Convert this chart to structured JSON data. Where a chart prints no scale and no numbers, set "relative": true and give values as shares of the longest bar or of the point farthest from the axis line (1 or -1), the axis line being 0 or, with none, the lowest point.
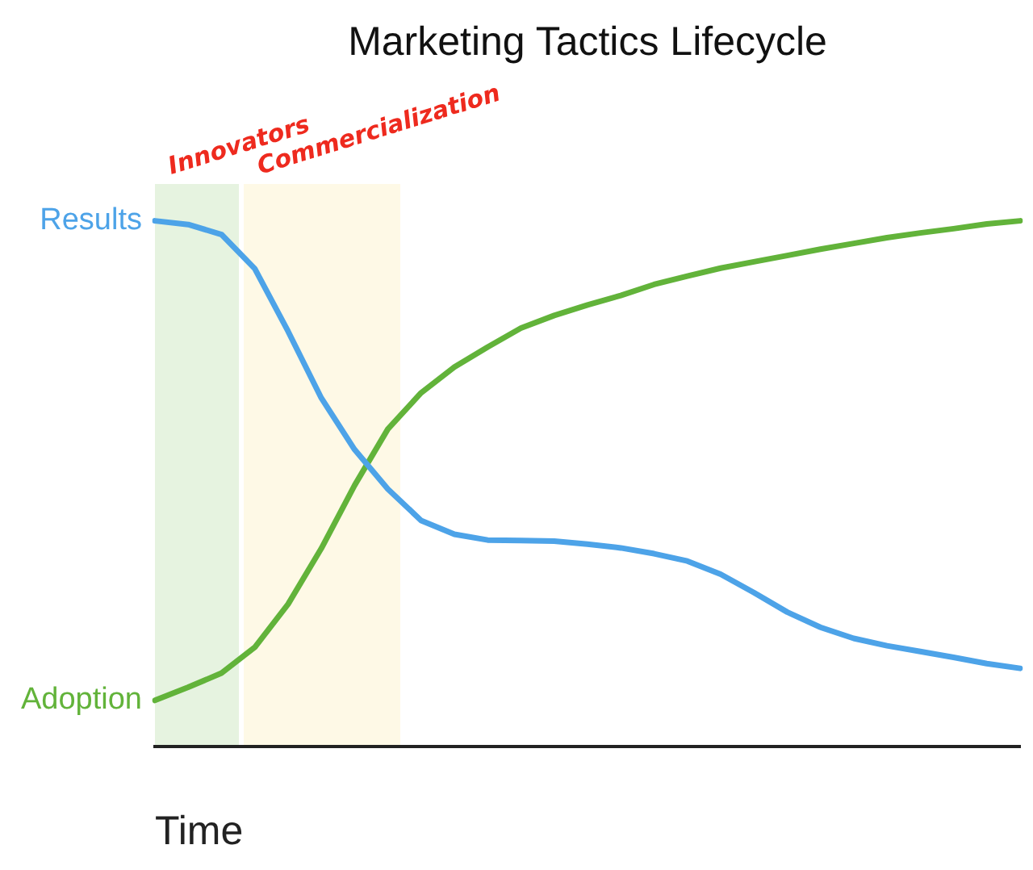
{
  "chart_data": {
    "type": "line",
    "title": "Marketing Tactics Lifecycle",
    "xlabel": "Time",
    "relative": true,
    "legend": false,
    "marker": "none",
    "line_style": "solid",
    "categories": [
      null,
      null,
      null,
      null,
      null,
      null,
      null,
      null,
      null,
      null,
      null,
      null,
      null,
      null,
      null,
      null,
      null,
      null,
      null,
      null,
      null,
      null,
      null,
      null,
      null,
      null,
      null
    ],
    "series": [
      {
        "name": "Results",
        "color": "#4da3e8",
        "values": [
          1,
          0.993,
          0.974,
          0.909,
          0.79,
          0.663,
          0.565,
          0.49,
          0.43,
          0.404,
          0.393,
          0.392,
          0.391,
          0.385,
          0.378,
          0.367,
          0.353,
          0.328,
          0.293,
          0.256,
          0.227,
          0.206,
          0.192,
          0.181,
          0.17,
          0.158,
          0.149
        ]
      },
      {
        "name": "Adoption",
        "color": "#62b33a",
        "values": [
          0.088,
          0.113,
          0.14,
          0.189,
          0.271,
          0.377,
          0.497,
          0.604,
          0.673,
          0.722,
          0.76,
          0.796,
          0.82,
          0.84,
          0.858,
          0.879,
          0.895,
          0.91,
          0.922,
          0.934,
          0.946,
          0.957,
          0.968,
          0.977,
          0.985,
          0.994,
          1
        ]
      }
    ],
    "annotations": [
      "Innovators",
      "Commercialization"
    ]
  }
}
